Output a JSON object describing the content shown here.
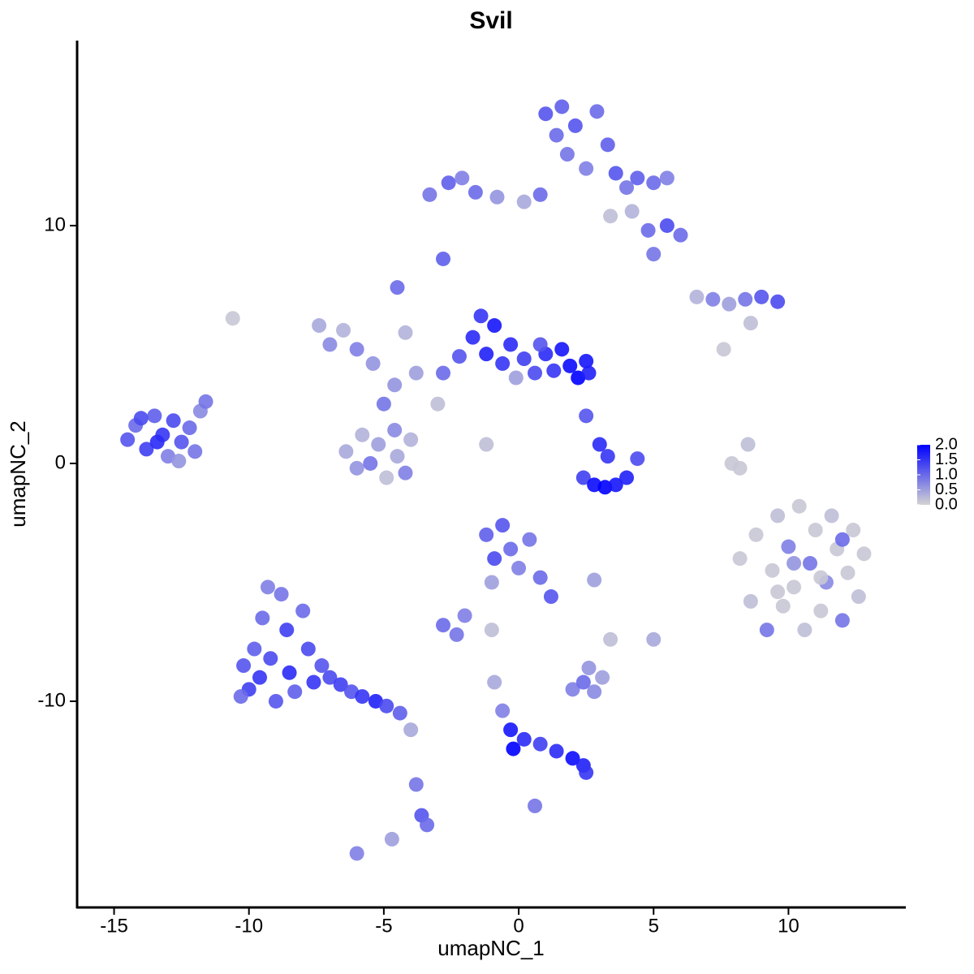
{
  "chart_data": {
    "type": "scatter",
    "title": "Svil",
    "x_label": "umapNC_1",
    "y_label": "umapNC_2",
    "xlim": [
      -16.37,
      14.32
    ],
    "ylim": [
      -18.67,
      17.78
    ],
    "xticks": [
      -15,
      -10,
      -5,
      0,
      5,
      10
    ],
    "yticks": [
      -10,
      0,
      10
    ],
    "color_low": "#d3d3d3",
    "color_high": "#0000ff",
    "clim": [
      0,
      2
    ],
    "colorbar_ticks": [
      {
        "value": 0,
        "label": "0.0"
      },
      {
        "value": 0.5,
        "label": "0.5"
      },
      {
        "value": 1,
        "label": "1.0"
      },
      {
        "value": 1.5,
        "label": "1.5"
      },
      {
        "value": 2,
        "label": "2.0"
      }
    ],
    "x": [
      -14.5,
      -14.2,
      -13.8,
      -13.5,
      -13.2,
      -13.0,
      -12.8,
      -12.5,
      -12.2,
      -12.0,
      -11.8,
      -11.6,
      -14.0,
      -13.4,
      -12.6,
      -10.2,
      -10.0,
      -9.8,
      -9.6,
      -9.5,
      -9.2,
      -9.0,
      -8.8,
      -8.6,
      -8.5,
      -8.3,
      -8.0,
      -7.8,
      -7.6,
      -7.3,
      -7.0,
      -6.6,
      -6.2,
      -5.8,
      -5.3,
      -4.9,
      -4.4,
      -4.0,
      -3.8,
      -3.6,
      -3.4,
      -6.0,
      -10.3,
      -9.3,
      -6.4,
      -6.0,
      -5.8,
      -5.5,
      -5.2,
      -4.9,
      -4.6,
      -4.5,
      -4.2,
      -4.0,
      -5.0,
      -4.6,
      -7.4,
      -7.0,
      -6.5,
      -6.0,
      -5.4,
      -4.5,
      -4.2,
      -3.8,
      -3.0,
      -1.2,
      -10.6,
      -2.8,
      -2.2,
      -1.7,
      -1.4,
      -1.2,
      -0.9,
      -0.6,
      -0.3,
      0.2,
      0.6,
      1.0,
      1.3,
      1.6,
      1.9,
      2.2,
      2.5,
      2.6,
      0.8,
      -0.1,
      -3.3,
      -2.6,
      -2.1,
      -1.6,
      -0.8,
      0.2,
      0.8,
      1.0,
      1.4,
      1.6,
      1.8,
      2.1,
      2.5,
      2.9,
      3.3,
      3.6,
      4.0,
      4.4,
      5.0,
      5.5,
      4.2,
      4.8,
      5.5,
      6.0,
      5.0,
      3.4,
      -2.8,
      6.6,
      7.2,
      7.8,
      8.4,
      9.0,
      9.6,
      8.6,
      7.6,
      8.2,
      8.5,
      7.9,
      2.4,
      2.8,
      3.2,
      3.6,
      4.0,
      3.0,
      3.3,
      2.5,
      4.4,
      8.2,
      8.6,
      8.8,
      9.2,
      9.4,
      9.6,
      9.8,
      10.0,
      10.2,
      10.4,
      10.6,
      10.8,
      11.0,
      11.2,
      11.4,
      11.6,
      11.8,
      12.0,
      12.2,
      12.4,
      12.6,
      12.8,
      10.2,
      11.2,
      9.6,
      12.0,
      -1.2,
      -0.9,
      -0.6,
      -0.3,
      0.0,
      0.4,
      0.8,
      1.2,
      -1.0,
      -2.0,
      -2.8,
      -2.3,
      -1.0,
      2.8,
      5.0,
      2.0,
      2.4,
      2.8,
      3.1,
      2.6,
      3.4,
      -0.9,
      -0.6,
      -0.3,
      -0.2,
      0.2,
      0.8,
      1.4,
      2.0,
      2.4,
      2.5,
      0.6,
      -4.7
    ],
    "y": [
      1.0,
      1.6,
      0.6,
      2.0,
      1.2,
      0.3,
      1.8,
      0.9,
      1.5,
      0.5,
      2.2,
      2.6,
      1.9,
      0.9,
      0.1,
      -8.5,
      -9.5,
      -7.8,
      -9.0,
      -6.5,
      -8.2,
      -10.0,
      -5.5,
      -7.0,
      -8.8,
      -9.6,
      -6.2,
      -7.8,
      -9.2,
      -8.5,
      -9.0,
      -9.3,
      -9.6,
      -9.8,
      -10.0,
      -10.2,
      -10.5,
      -11.2,
      -13.5,
      -14.8,
      -15.2,
      -16.4,
      -9.8,
      -5.2,
      0.5,
      -0.2,
      1.2,
      0.0,
      0.8,
      -0.6,
      1.4,
      0.3,
      -0.4,
      1.0,
      2.5,
      3.3,
      5.8,
      5.0,
      5.6,
      4.8,
      4.2,
      7.4,
      5.5,
      3.8,
      2.5,
      0.8,
      6.1,
      3.8,
      4.5,
      5.3,
      6.2,
      4.6,
      5.8,
      4.2,
      5.0,
      4.4,
      3.8,
      4.6,
      3.9,
      4.8,
      4.1,
      3.6,
      4.3,
      3.8,
      5.0,
      3.6,
      11.3,
      11.8,
      12.0,
      11.4,
      11.2,
      11.0,
      11.3,
      14.7,
      13.8,
      15.0,
      13.0,
      14.2,
      12.4,
      14.8,
      13.4,
      12.2,
      11.6,
      12.0,
      11.8,
      12.0,
      10.6,
      9.8,
      10.0,
      9.6,
      8.8,
      10.4,
      8.6,
      7.0,
      6.9,
      6.7,
      6.9,
      7.0,
      6.8,
      5.9,
      4.8,
      -0.2,
      0.8,
      0.0,
      -0.6,
      -0.9,
      -1.0,
      -0.9,
      -0.6,
      0.8,
      0.3,
      2.0,
      0.2,
      -4.0,
      -5.8,
      -3.0,
      -7.0,
      -4.5,
      -2.2,
      -6.0,
      -3.5,
      -5.2,
      -1.8,
      -7.0,
      -4.2,
      -2.8,
      -6.2,
      -5.0,
      -2.2,
      -3.6,
      -6.6,
      -4.6,
      -2.8,
      -5.6,
      -3.8,
      -4.2,
      -4.8,
      -5.4,
      -3.2,
      -3.0,
      -4.0,
      -2.6,
      -3.6,
      -4.4,
      -3.2,
      -4.8,
      -5.6,
      -5.0,
      -6.4,
      -6.8,
      -7.2,
      -7.0,
      -4.9,
      -7.4,
      -9.5,
      -9.2,
      -9.6,
      -9.0,
      -8.6,
      -7.4,
      -9.2,
      -10.4,
      -11.2,
      -12.0,
      -11.6,
      -11.8,
      -12.1,
      -12.4,
      -12.7,
      -13.0,
      -14.4,
      -15.8
    ],
    "values": [
      1.2,
      1.0,
      1.4,
      1.1,
      1.5,
      0.8,
      1.3,
      1.2,
      1.0,
      0.9,
      0.7,
      0.9,
      1.3,
      1.6,
      0.6,
      1.2,
      1.4,
      1.1,
      1.5,
      1.0,
      1.3,
      1.2,
      0.9,
      1.4,
      1.6,
      1.1,
      1.0,
      1.3,
      1.5,
      1.2,
      1.3,
      1.4,
      1.2,
      1.5,
      1.7,
      1.3,
      1.1,
      0.4,
      0.9,
      1.2,
      1.0,
      0.8,
      1.0,
      0.8,
      0.4,
      0.6,
      0.3,
      0.9,
      0.5,
      0.2,
      0.7,
      0.4,
      0.8,
      0.3,
      0.9,
      0.6,
      0.4,
      0.7,
      0.3,
      0.8,
      0.6,
      1.0,
      0.3,
      0.5,
      0.2,
      0.2,
      0.1,
      1.0,
      1.2,
      1.6,
      1.5,
      1.7,
      1.8,
      1.5,
      1.6,
      1.4,
      1.3,
      1.6,
      1.5,
      1.8,
      1.9,
      2.0,
      1.8,
      1.7,
      1.2,
      0.5,
      0.9,
      1.1,
      0.8,
      1.0,
      0.6,
      0.4,
      1.0,
      1.2,
      1.0,
      1.1,
      0.9,
      1.2,
      0.8,
      1.0,
      1.1,
      1.2,
      0.9,
      1.1,
      1.0,
      0.8,
      0.3,
      1.0,
      1.3,
      1.0,
      0.9,
      0.2,
      1.1,
      0.3,
      0.8,
      0.5,
      0.9,
      1.2,
      1.3,
      0.2,
      0.1,
      0.1,
      0.2,
      0.1,
      1.4,
      1.9,
      2.0,
      1.8,
      1.7,
      1.6,
      1.5,
      1.2,
      1.3,
      0.1,
      0.2,
      0.1,
      0.9,
      0.1,
      0.2,
      0.1,
      0.8,
      0.1,
      0.1,
      0.2,
      0.9,
      0.1,
      0.1,
      0.7,
      0.2,
      0.1,
      0.9,
      0.1,
      0.1,
      0.2,
      0.1,
      0.6,
      0.1,
      0.1,
      1.0,
      1.1,
      1.3,
      1.2,
      1.0,
      0.8,
      0.9,
      1.0,
      1.2,
      0.5,
      0.8,
      1.0,
      0.9,
      0.2,
      0.5,
      0.4,
      0.8,
      1.0,
      0.7,
      0.5,
      0.6,
      0.2,
      0.4,
      0.8,
      1.8,
      2.0,
      1.6,
      1.4,
      1.6,
      1.9,
      1.7,
      1.5,
      0.9,
      0.5
    ]
  }
}
